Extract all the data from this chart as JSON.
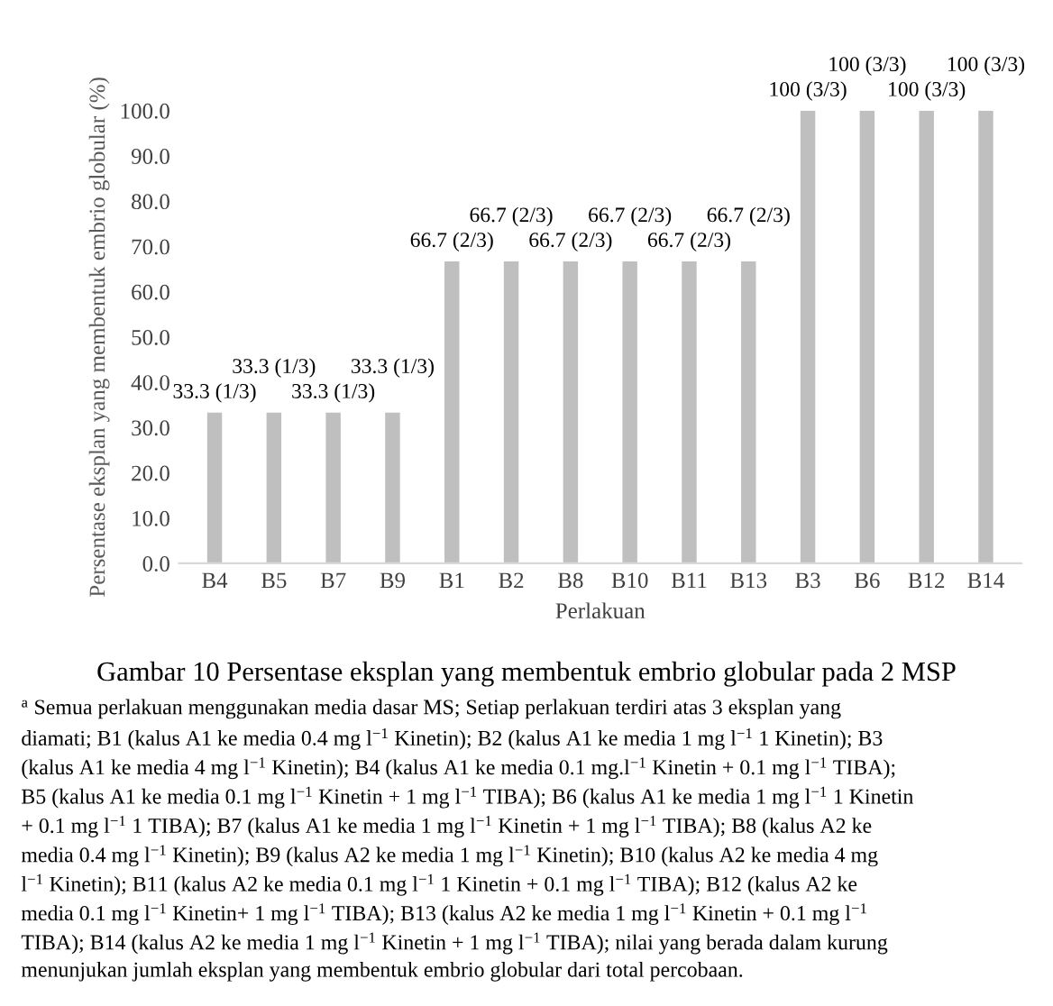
{
  "chart_data": {
    "type": "bar",
    "title": "Gambar 10 Persentase eksplan yang membentuk embrio globular pada 2 MSP",
    "xlabel": "Perlakuan",
    "ylabel": "Persentase eksplan yang membentuk embrio globular (%)",
    "categories": [
      "B4",
      "B5",
      "B7",
      "B9",
      "B1",
      "B2",
      "B8",
      "B10",
      "B11",
      "B13",
      "B3",
      "B6",
      "B12",
      "B14"
    ],
    "values": [
      33.3,
      33.3,
      33.3,
      33.3,
      66.7,
      66.7,
      66.7,
      66.7,
      66.7,
      66.7,
      100,
      100,
      100,
      100
    ],
    "value_labels": [
      "33.3 (1/3)",
      "33.3 (1/3)",
      "33.3 (1/3)",
      "33.3 (1/3)",
      "66.7 (2/3)",
      "66.7 (2/3)",
      "66.7 (2/3)",
      "66.7 (2/3)",
      "66.7 (2/3)",
      "66.7 (2/3)",
      "100 (3/3)",
      "100 (3/3)",
      "100 (3/3)",
      "100 (3/3)"
    ],
    "color": "#bfbfbf",
    "ylim": [
      0,
      100
    ],
    "yticks": [
      {
        "value": 0,
        "label": "0.0"
      },
      {
        "value": 10,
        "label": "10.0"
      },
      {
        "value": 20,
        "label": "20.0"
      },
      {
        "value": 30,
        "label": "30.0"
      },
      {
        "value": 40,
        "label": "40.0"
      },
      {
        "value": 50,
        "label": "50.0"
      },
      {
        "value": 60,
        "label": "60.0"
      },
      {
        "value": 70,
        "label": "70.0"
      },
      {
        "value": 80,
        "label": "80.0"
      },
      {
        "value": 90,
        "label": "90.0"
      },
      {
        "value": 100,
        "label": "100.0"
      }
    ],
    "grid": false,
    "annotations": [
      "$^{a}$ Semua perlakuan menggunakan media dasar MS; Setiap perlakuan terdiri atas 3 eksplan yang",
      "diamati; B1 (kalus A1 ke media 0.4 mg l$^{−1}$ Kinetin); B2 (kalus A1 ke media 1 mg l$^{−1}$ 1 Kinetin); B3",
      "(kalus A1 ke media 4 mg l$^{−1}$ Kinetin); B4 (kalus A1 ke media 0.1 mg.l$^{−1}$ Kinetin + 0.1 mg l$^{−1}$ TIBA);",
      "B5 (kalus A1 ke media 0.1 mg l$^{−1}$ Kinetin + 1 mg l$^{−1}$ TIBA); B6 (kalus A1 ke media 1 mg l$^{−1}$ 1 Kinetin",
      "+ 0.1 mg l$^{−1}$ 1 TIBA); B7 (kalus A1 ke media 1 mg l$^{−1}$ Kinetin + 1 mg l$^{−1}$ TIBA); B8 (kalus A2 ke",
      "media 0.4 mg l$^{−1}$ Kinetin); B9 (kalus A2 ke media 1 mg l$^{−1}$ Kinetin); B10 (kalus A2 ke media 4 mg",
      "l$^{−1}$ Kinetin); B11 (kalus A2 ke media 0.1 mg l$^{−1}$ 1 Kinetin + 0.1 mg l$^{−1}$ TIBA); B12 (kalus A2 ke",
      "media 0.1 mg l$^{−1}$ Kinetin+ 1 mg l$^{−1}$ TIBA); B13 (kalus A2 ke media 1 mg l$^{−1}$ Kinetin + 0.1 mg l$^{−1}$",
      "TIBA); B14 (kalus A2 ke media 1 mg l$^{−1}$ Kinetin + 1 mg l$^{−1}$ TIBA); nilai yang berada dalam kurung",
      "menunjukan jumlah eksplan yang membentuk embrio globular dari total percobaan."
    ]
  }
}
